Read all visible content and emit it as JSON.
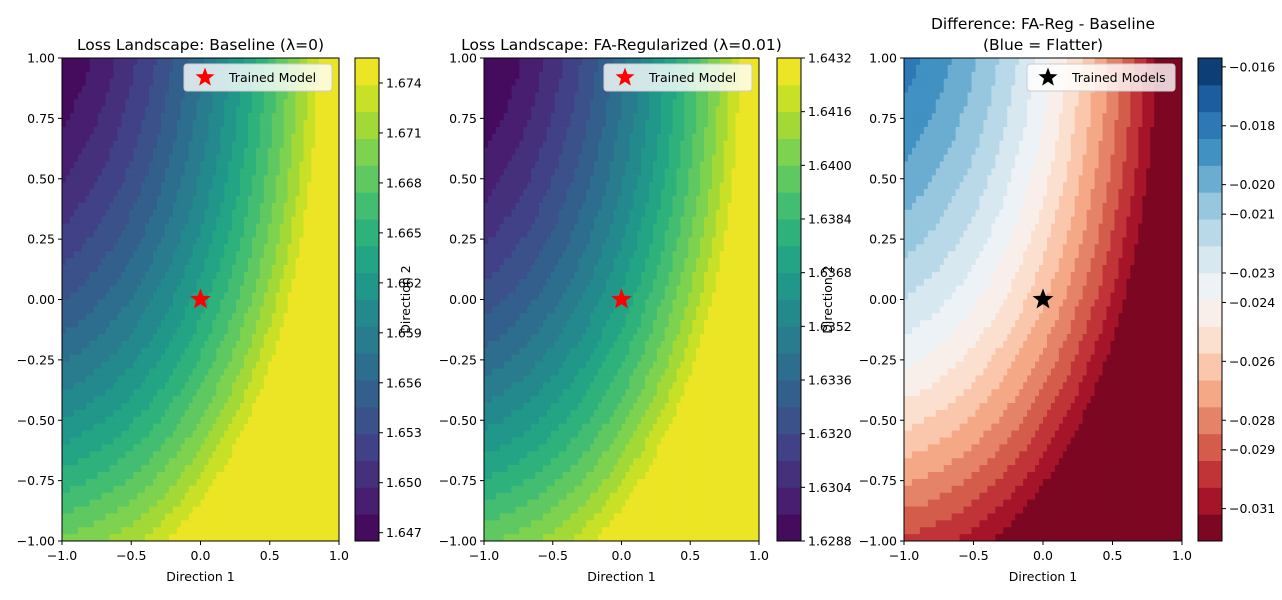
{
  "chart_data": [
    {
      "type": "heatmap",
      "title": "Loss Landscape: Baseline (λ=0)",
      "xlabel": "Direction 1",
      "ylabel": "Direction 2",
      "xlim": [
        -1,
        1
      ],
      "ylim": [
        -1,
        1
      ],
      "x_ticks": [
        "−1.0",
        "−0.5",
        "0.0",
        "0.5",
        "1.0"
      ],
      "y_ticks": [
        "1.00",
        "0.75",
        "0.50",
        "0.25",
        "0.00",
        "−0.25",
        "−0.50",
        "−0.75",
        "−1.00"
      ],
      "colormap": "viridis",
      "colorbar_range": [
        1.6465,
        1.6755
      ],
      "colorbar_ticks": [
        "1.674",
        "1.671",
        "1.668",
        "1.665",
        "1.662",
        "1.659",
        "1.656",
        "1.653",
        "1.650",
        "1.647"
      ],
      "levels": 18,
      "surface": {
        "center": 1.6545,
        "a": 0.0045,
        "b": 0.0045,
        "c": -0.0115,
        "d": 0.0035,
        "e": 0.002,
        "f": 0
      },
      "marker": {
        "x": 0,
        "y": 0,
        "label": "Trained Model",
        "color": "#ff0000"
      },
      "legend": "top-right"
    },
    {
      "type": "heatmap",
      "title": "Loss Landscape: FA-Regularized (λ=0.01)",
      "xlabel": "Direction 1",
      "ylabel": "Direction 2",
      "xlim": [
        -1,
        1
      ],
      "ylim": [
        -1,
        1
      ],
      "x_ticks": [
        "−1.0",
        "−0.5",
        "0.0",
        "0.5",
        "1.0"
      ],
      "y_ticks": [
        "1.00",
        "0.75",
        "0.50",
        "0.25",
        "0.00",
        "−0.25",
        "−0.50",
        "−0.75",
        "−1.00"
      ],
      "colormap": "viridis",
      "colorbar_range": [
        1.6288,
        1.6432
      ],
      "colorbar_ticks": [
        "1.6432",
        "1.6416",
        "1.6400",
        "1.6384",
        "1.6368",
        "1.6352",
        "1.6336",
        "1.6320",
        "1.6304",
        "1.6288"
      ],
      "levels": 18,
      "surface": {
        "center": 1.6324,
        "a": 0.0024,
        "b": 0.0022,
        "c": -0.0057,
        "d": 0.0018,
        "e": 0.001,
        "f": 0
      },
      "marker": {
        "x": 0,
        "y": 0,
        "label": "Trained Model",
        "color": "#ff0000"
      },
      "legend": "top-right"
    },
    {
      "type": "heatmap",
      "title": "Difference: FA-Reg - Baseline",
      "subtitle": "(Blue = Flatter)",
      "xlabel": "Direction 1",
      "ylabel": "",
      "xlim": [
        -1,
        1
      ],
      "ylim": [
        -1,
        1
      ],
      "x_ticks": [
        "−1.0",
        "−0.5",
        "0.0",
        "0.5",
        "1.0"
      ],
      "y_ticks": [
        "1.00",
        "0.75",
        "0.50",
        "0.25",
        "0.00",
        "−0.25",
        "−0.50",
        "−0.75",
        "−1.00"
      ],
      "colormap": "RdBu",
      "colorbar_range": [
        -0.0321,
        -0.0157
      ],
      "colorbar_ticks": [
        "−0.016",
        "−0.018",
        "−0.020",
        "−0.021",
        "−0.023",
        "−0.024",
        "−0.026",
        "−0.028",
        "−0.029",
        "−0.031"
      ],
      "levels": 18,
      "surface": {
        "center": -0.0221,
        "a": -0.0021,
        "b": -0.0023,
        "c": 0.0058,
        "d": -0.0017,
        "e": -0.001,
        "f": 0
      },
      "marker": {
        "x": 0,
        "y": 0,
        "label": "Trained Models",
        "color": "#000000"
      },
      "legend": "top-right"
    }
  ]
}
